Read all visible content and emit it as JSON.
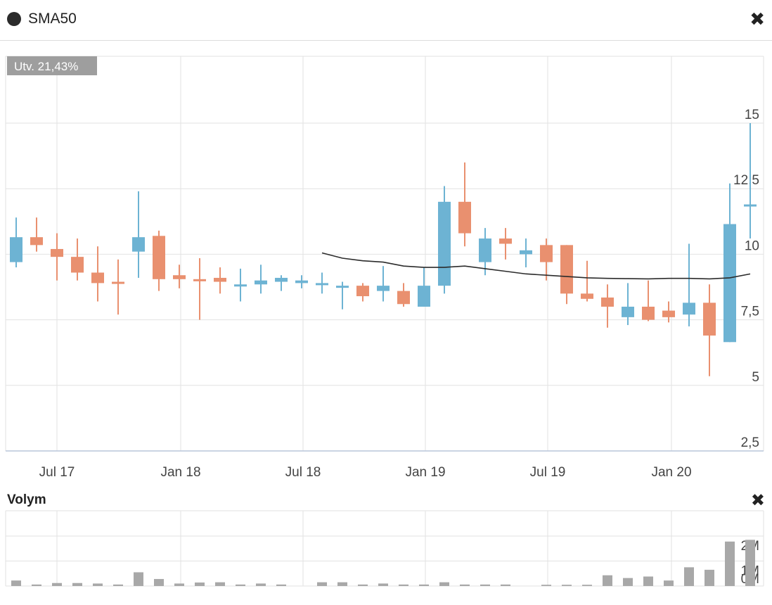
{
  "header": {
    "legend_label": "SMA50",
    "close_icon": "close-icon"
  },
  "volume_panel": {
    "title": "Volym",
    "close_icon": "close-icon"
  },
  "badge": "Utv. 21,43%",
  "colors": {
    "up": "#6db3d3",
    "down": "#e9906f",
    "sma": "#2b2b2b",
    "volume": "#a8a8a8",
    "grid": "#e2e2e2"
  },
  "chart_data": [
    {
      "type": "candlestick",
      "title": "",
      "yaxis": {
        "ticks": [
          2.5,
          5,
          7.5,
          10,
          12.5,
          15
        ],
        "tick_labels": [
          "2,5",
          "5",
          "7,5",
          "10",
          "12,5",
          "15"
        ],
        "range": [
          2.5,
          17.5
        ],
        "position": "right"
      },
      "xaxis": {
        "tick_labels": [
          "Jul 17",
          "Jan 18",
          "Jul 18",
          "Jan 19",
          "Jul 19",
          "Jan 20"
        ]
      },
      "grid": true,
      "period": "monthly",
      "candles": [
        {
          "o": 9.7,
          "h": 11.4,
          "l": 9.5,
          "c": 10.65
        },
        {
          "o": 10.65,
          "h": 11.4,
          "l": 10.1,
          "c": 10.35
        },
        {
          "o": 10.2,
          "h": 10.8,
          "l": 9.0,
          "c": 9.9
        },
        {
          "o": 9.9,
          "h": 10.6,
          "l": 9.0,
          "c": 9.3
        },
        {
          "o": 9.3,
          "h": 10.3,
          "l": 8.2,
          "c": 8.9
        },
        {
          "o": 8.95,
          "h": 9.8,
          "l": 7.7,
          "c": 8.9
        },
        {
          "o": 10.1,
          "h": 12.4,
          "l": 9.1,
          "c": 10.65
        },
        {
          "o": 10.7,
          "h": 10.9,
          "l": 8.6,
          "c": 9.05
        },
        {
          "o": 9.2,
          "h": 9.6,
          "l": 8.7,
          "c": 9.05
        },
        {
          "o": 9.05,
          "h": 9.85,
          "l": 7.5,
          "c": 9.0
        },
        {
          "o": 9.1,
          "h": 9.5,
          "l": 8.5,
          "c": 8.95
        },
        {
          "o": 8.8,
          "h": 9.45,
          "l": 8.2,
          "c": 8.85
        },
        {
          "o": 8.85,
          "h": 9.6,
          "l": 8.5,
          "c": 9.0
        },
        {
          "o": 8.95,
          "h": 9.2,
          "l": 8.6,
          "c": 9.1
        },
        {
          "o": 8.9,
          "h": 9.2,
          "l": 8.7,
          "c": 9.0
        },
        {
          "o": 8.85,
          "h": 9.3,
          "l": 8.5,
          "c": 8.9
        },
        {
          "o": 8.75,
          "h": 8.95,
          "l": 7.9,
          "c": 8.8
        },
        {
          "o": 8.8,
          "h": 8.9,
          "l": 8.2,
          "c": 8.4
        },
        {
          "o": 8.6,
          "h": 9.55,
          "l": 8.2,
          "c": 8.8
        },
        {
          "o": 8.6,
          "h": 8.9,
          "l": 8.0,
          "c": 8.1
        },
        {
          "o": 8.0,
          "h": 9.5,
          "l": 8.0,
          "c": 8.8
        },
        {
          "o": 8.8,
          "h": 12.6,
          "l": 8.5,
          "c": 12.0
        },
        {
          "o": 12.0,
          "h": 13.5,
          "l": 10.3,
          "c": 10.8
        },
        {
          "o": 9.7,
          "h": 11.0,
          "l": 9.2,
          "c": 10.6
        },
        {
          "o": 10.6,
          "h": 11.0,
          "l": 9.8,
          "c": 10.4
        },
        {
          "o": 10.0,
          "h": 10.6,
          "l": 9.5,
          "c": 10.15
        },
        {
          "o": 10.35,
          "h": 10.6,
          "l": 9.0,
          "c": 9.7
        },
        {
          "o": 10.35,
          "h": 10.35,
          "l": 8.1,
          "c": 8.5
        },
        {
          "o": 8.5,
          "h": 9.75,
          "l": 8.2,
          "c": 8.3
        },
        {
          "o": 8.35,
          "h": 8.85,
          "l": 7.2,
          "c": 8.0
        },
        {
          "o": 7.6,
          "h": 8.9,
          "l": 7.3,
          "c": 8.0
        },
        {
          "o": 8.0,
          "h": 9.0,
          "l": 7.45,
          "c": 7.5
        },
        {
          "o": 7.85,
          "h": 8.2,
          "l": 7.4,
          "c": 7.6
        },
        {
          "o": 7.7,
          "h": 10.4,
          "l": 7.25,
          "c": 8.15
        },
        {
          "o": 8.15,
          "h": 8.85,
          "l": 5.35,
          "c": 6.9
        },
        {
          "o": 6.65,
          "h": 12.7,
          "l": 6.65,
          "c": 11.15
        },
        {
          "o": 11.85,
          "h": 15.0,
          "l": 10.6,
          "c": 11.9
        }
      ],
      "sma50": [
        {
          "i": 15,
          "v": 10.05
        },
        {
          "i": 16,
          "v": 9.85
        },
        {
          "i": 17,
          "v": 9.75
        },
        {
          "i": 18,
          "v": 9.7
        },
        {
          "i": 19,
          "v": 9.55
        },
        {
          "i": 20,
          "v": 9.5
        },
        {
          "i": 21,
          "v": 9.5
        },
        {
          "i": 22,
          "v": 9.55
        },
        {
          "i": 23,
          "v": 9.45
        },
        {
          "i": 24,
          "v": 9.35
        },
        {
          "i": 25,
          "v": 9.25
        },
        {
          "i": 26,
          "v": 9.2
        },
        {
          "i": 27,
          "v": 9.15
        },
        {
          "i": 28,
          "v": 9.1
        },
        {
          "i": 29,
          "v": 9.08
        },
        {
          "i": 30,
          "v": 9.07
        },
        {
          "i": 31,
          "v": 9.06
        },
        {
          "i": 32,
          "v": 9.08
        },
        {
          "i": 33,
          "v": 9.08
        },
        {
          "i": 34,
          "v": 9.06
        },
        {
          "i": 35,
          "v": 9.1
        },
        {
          "i": 36,
          "v": 9.25
        }
      ],
      "sma_name": "SMA50"
    },
    {
      "type": "bar",
      "title": "Volym",
      "yaxis": {
        "tick_labels": [
          "0M",
          "1M",
          "2M"
        ],
        "ticks": [
          0,
          1,
          2
        ],
        "range": [
          0,
          2.3
        ],
        "unit": "M"
      },
      "values": [
        0.22,
        0.06,
        0.12,
        0.12,
        0.1,
        0.06,
        0.55,
        0.28,
        0.1,
        0.14,
        0.15,
        0.06,
        0.1,
        0.06,
        0,
        0.15,
        0.15,
        0.06,
        0.1,
        0.06,
        0.06,
        0.15,
        0.06,
        0.06,
        0.06,
        0,
        0.05,
        0.05,
        0.05,
        0.43,
        0.32,
        0.38,
        0.22,
        0.75,
        0.65,
        1.78,
        1.85
      ]
    }
  ]
}
